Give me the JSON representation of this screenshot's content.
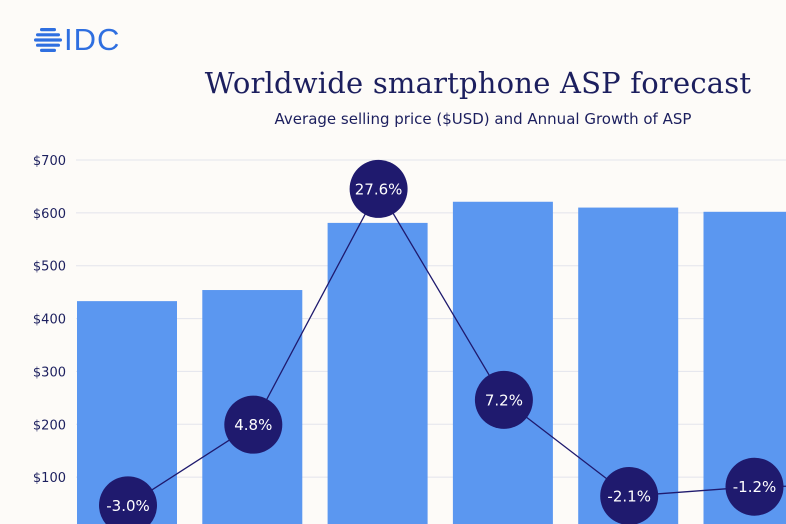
{
  "logo": {
    "text": "IDC"
  },
  "colors": {
    "bar": "#5b97f0",
    "marker": "#1f1a6e",
    "line": "#1f1a6e",
    "grid": "#e3e4ec",
    "text": "#1c1f5e",
    "accent": "#2f6fe0"
  },
  "chart_data": {
    "type": "bar",
    "title": "Worldwide smartphone ASP forecast",
    "subtitle": "Average selling price ($USD) and Annual Growth of ASP",
    "ylim": [
      0,
      700
    ],
    "y_ticks": [
      100,
      200,
      300,
      400,
      500,
      600,
      700
    ],
    "y_tick_labels": [
      "$100",
      "$200",
      "$300",
      "$400",
      "$500",
      "$600",
      "$700"
    ],
    "grid": true,
    "series": [
      {
        "values": [
          433,
          454,
          581,
          621,
          610,
          602
        ]
      },
      {
        "type": "line",
        "values": [
          -3.0,
          4.8,
          27.6,
          7.2,
          -2.1,
          -1.2
        ],
        "labels": [
          "-3.0%",
          "4.8%",
          "27.6%",
          "7.2%",
          "-2.1%",
          "-1.2%"
        ]
      }
    ]
  }
}
